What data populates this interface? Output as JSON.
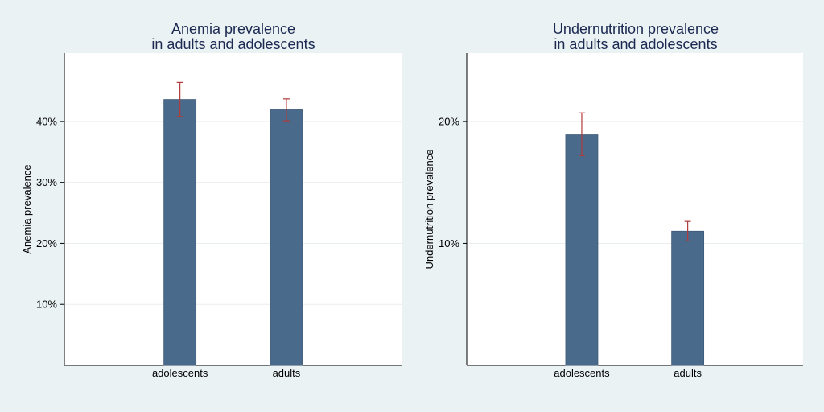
{
  "colors": {
    "background": "#eaf2f3",
    "plot_area": "#ffffff",
    "bar": "#4a6a8b",
    "error_bar": "#b23a3a",
    "gridline": "#e9eef0",
    "title": "#1c2a52",
    "text": "#000000"
  },
  "chart_data": [
    {
      "type": "bar",
      "title": "Anemia prevalence\nin adults and adolescents",
      "xlabel": "",
      "ylabel": "Anemia prevalence",
      "categories": [
        "adolescents",
        "adults"
      ],
      "values": [
        43.6,
        41.9
      ],
      "ci_lower": [
        40.8,
        40.1
      ],
      "ci_upper": [
        46.4,
        43.7
      ],
      "ylim": [
        0,
        51.2
      ],
      "yticks": [
        10,
        20,
        30,
        40
      ],
      "ytick_labels": [
        "10%",
        "20%",
        "30%",
        "40%"
      ],
      "grid": true,
      "legend": "none"
    },
    {
      "type": "bar",
      "title": "Undernutrition prevalence\nin adults and adolescents",
      "xlabel": "",
      "ylabel": "Undernutrition prevalence",
      "categories": [
        "adolescents",
        "adults"
      ],
      "values": [
        18.9,
        11.0
      ],
      "ci_lower": [
        17.2,
        10.2
      ],
      "ci_upper": [
        20.7,
        11.8
      ],
      "ylim": [
        0,
        25.6
      ],
      "yticks": [
        10,
        20
      ],
      "ytick_labels": [
        "10%",
        "20%"
      ],
      "grid": true,
      "legend": "none"
    }
  ]
}
